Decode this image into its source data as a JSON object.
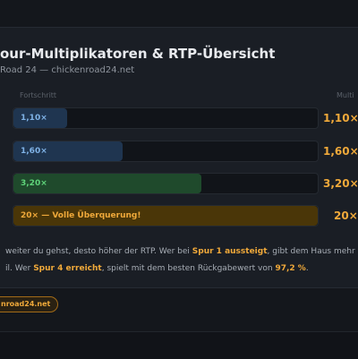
{
  "header": {
    "title": "our-Multiplikatoren & RTP-Übersicht",
    "subtitle": "Road 24 — chickenroad24.net"
  },
  "table": {
    "columns": [
      "Fortschritt",
      "Multi"
    ],
    "rows": [
      {
        "bar_label": "1,10×",
        "value": "1,10×"
      },
      {
        "bar_label": "1,60×",
        "value": "1,60×"
      },
      {
        "bar_label": "3,20×",
        "value": "3,20×"
      },
      {
        "bar_label": "20× — Volle Überquerung!",
        "value": "20×"
      }
    ]
  },
  "note": {
    "line1": [
      "weiter du gehst, desto höher der RTP. Wer bei ",
      "Spur 1 aussteigt",
      ", gibt dem Haus mehr"
    ],
    "line2": [
      "il. Wer ",
      "Spur 4 erreicht",
      ", spielt mit dem besten Rückgabewert von ",
      "97,2 %",
      "."
    ]
  },
  "badge": "nroad24.net"
}
